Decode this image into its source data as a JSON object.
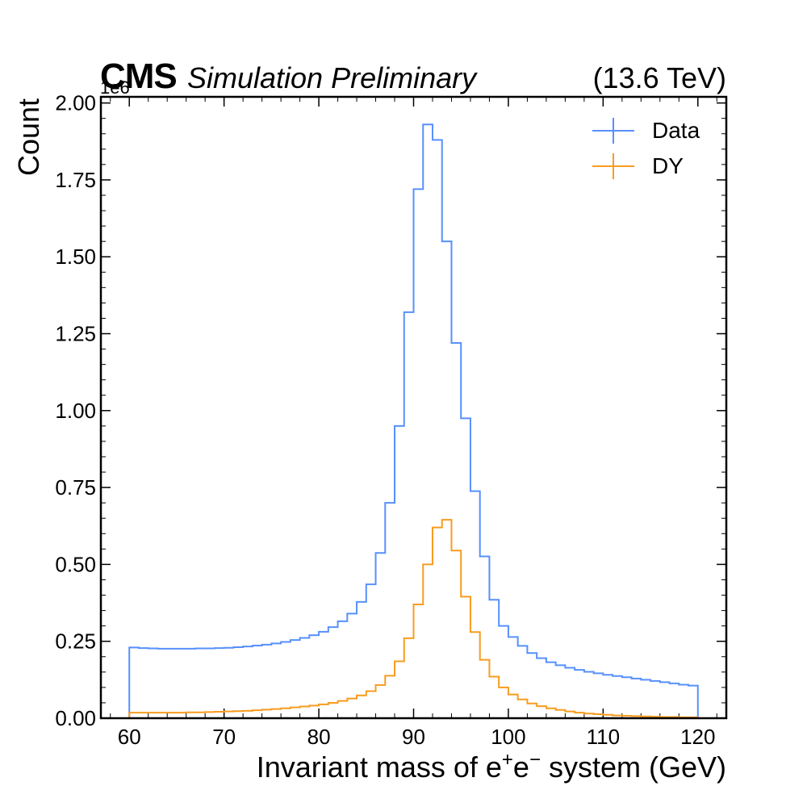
{
  "header": {
    "experiment": "CMS",
    "subtitle": "Simulation Preliminary",
    "energy": "(13.6 TeV)",
    "exponent": "1e6"
  },
  "legend": {
    "items": [
      {
        "label": "Data",
        "color": "#5790fc"
      },
      {
        "label": "DY",
        "color": "#f89c20"
      }
    ]
  },
  "chart_data": {
    "type": "line",
    "style": "step-histogram",
    "xlabel_main": "Invariant mass of e",
    "xlabel_e1": "e",
    "xlabel_tail": "system (GeV)",
    "xlabel_plus": "+",
    "xlabel_minus": "−",
    "ylabel": "Count",
    "xlim": [
      57,
      123
    ],
    "ylim": [
      0,
      2.02
    ],
    "x_ticks": [
      60,
      70,
      80,
      90,
      100,
      110,
      120
    ],
    "y_ticks": [
      0.0,
      0.25,
      0.5,
      0.75,
      1.0,
      1.25,
      1.5,
      1.75,
      2.0
    ],
    "y_tick_labels": [
      "0.00",
      "0.25",
      "0.50",
      "0.75",
      "1.00",
      "1.25",
      "1.50",
      "1.75",
      "2.00"
    ],
    "y_scale_factor": "1e6",
    "legend_position": "top-right",
    "bin_edges": [
      60,
      61,
      62,
      63,
      64,
      65,
      66,
      67,
      68,
      69,
      70,
      71,
      72,
      73,
      74,
      75,
      76,
      77,
      78,
      79,
      80,
      81,
      82,
      83,
      84,
      85,
      86,
      87,
      88,
      89,
      90,
      91,
      92,
      93,
      94,
      95,
      96,
      97,
      98,
      99,
      100,
      101,
      102,
      103,
      104,
      105,
      106,
      107,
      108,
      109,
      110,
      111,
      112,
      113,
      114,
      115,
      116,
      117,
      118,
      119,
      120
    ],
    "series": [
      {
        "name": "Data",
        "color": "#5790fc",
        "values": [
          0.23,
          0.228,
          0.227,
          0.226,
          0.226,
          0.226,
          0.226,
          0.227,
          0.227,
          0.228,
          0.229,
          0.231,
          0.233,
          0.236,
          0.239,
          0.243,
          0.248,
          0.254,
          0.261,
          0.27,
          0.281,
          0.296,
          0.315,
          0.34,
          0.378,
          0.435,
          0.537,
          0.7,
          0.95,
          1.32,
          1.72,
          1.93,
          1.88,
          1.55,
          1.22,
          0.975,
          0.738,
          0.526,
          0.385,
          0.3,
          0.264,
          0.235,
          0.212,
          0.195,
          0.182,
          0.172,
          0.164,
          0.157,
          0.151,
          0.146,
          0.141,
          0.137,
          0.133,
          0.129,
          0.125,
          0.121,
          0.117,
          0.113,
          0.109,
          0.106
        ]
      },
      {
        "name": "DY",
        "color": "#f89c20",
        "values": [
          0.018,
          0.018,
          0.018,
          0.018,
          0.018,
          0.018,
          0.019,
          0.019,
          0.02,
          0.021,
          0.022,
          0.023,
          0.024,
          0.026,
          0.028,
          0.03,
          0.032,
          0.035,
          0.038,
          0.041,
          0.045,
          0.05,
          0.056,
          0.064,
          0.074,
          0.088,
          0.108,
          0.138,
          0.185,
          0.26,
          0.37,
          0.5,
          0.62,
          0.645,
          0.545,
          0.395,
          0.28,
          0.19,
          0.135,
          0.1,
          0.077,
          0.061,
          0.048,
          0.039,
          0.032,
          0.027,
          0.022,
          0.018,
          0.015,
          0.013,
          0.011,
          0.009,
          0.008,
          0.007,
          0.006,
          0.005,
          0.004,
          0.004,
          0.003,
          0.003
        ]
      }
    ]
  }
}
